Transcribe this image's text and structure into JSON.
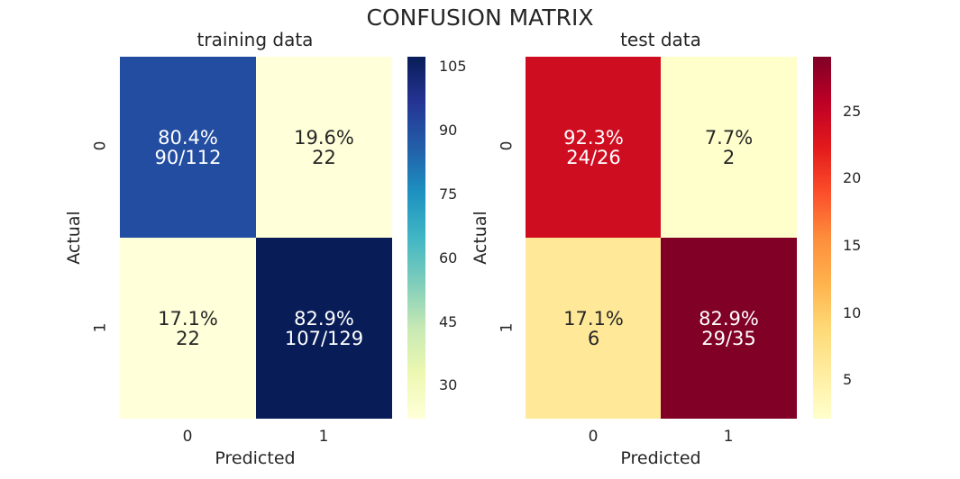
{
  "title": "CONFUSION MATRIX",
  "chart_data": [
    {
      "type": "heatmap",
      "title": "training data",
      "xlabel": "Predicted",
      "ylabel": "Actual",
      "x_categories": [
        "0",
        "1"
      ],
      "y_categories": [
        "0",
        "1"
      ],
      "values": [
        [
          90,
          22
        ],
        [
          22,
          107
        ]
      ],
      "cell_labels": [
        [
          {
            "pct": "80.4%",
            "count": "90/112"
          },
          {
            "pct": "19.6%",
            "count": "22"
          }
        ],
        [
          {
            "pct": "17.1%",
            "count": "22"
          },
          {
            "pct": "82.9%",
            "count": "107/129"
          }
        ]
      ],
      "colormap": "YlGnBu",
      "colorbar_range": [
        22,
        107
      ],
      "colorbar_ticks": [
        "105",
        "90",
        "75",
        "60",
        "45",
        "30"
      ]
    },
    {
      "type": "heatmap",
      "title": "test  data",
      "xlabel": "Predicted",
      "ylabel": "Actual",
      "x_categories": [
        "0",
        "1"
      ],
      "y_categories": [
        "0",
        "1"
      ],
      "values": [
        [
          24,
          2
        ],
        [
          6,
          29
        ]
      ],
      "cell_labels": [
        [
          {
            "pct": "92.3%",
            "count": "24/26"
          },
          {
            "pct": "7.7%",
            "count": "2"
          }
        ],
        [
          {
            "pct": "17.1%",
            "count": "6"
          },
          {
            "pct": "82.9%",
            "count": "29/35"
          }
        ]
      ],
      "colormap": "YlOrRd",
      "colorbar_range": [
        2,
        29
      ],
      "colorbar_ticks": [
        "25",
        "20",
        "15",
        "10",
        "5"
      ]
    }
  ]
}
